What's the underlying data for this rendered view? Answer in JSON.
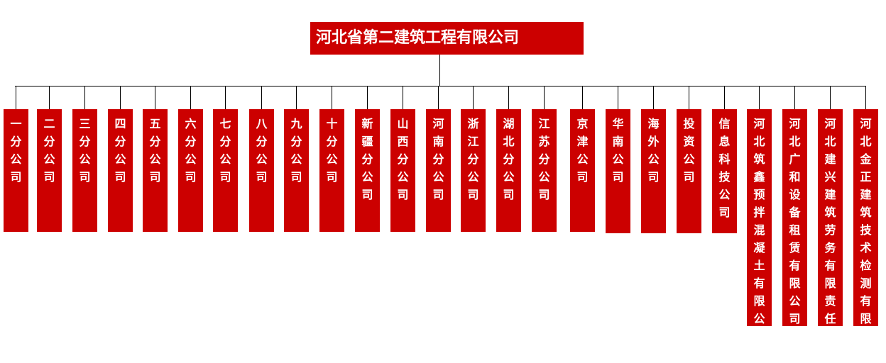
{
  "root": {
    "label": "河北省第二建筑工程有限公司"
  },
  "colors": {
    "box": "#cc0000",
    "text": "#ffffff",
    "connector": "#000000"
  },
  "children": [
    {
      "label": "一分公司"
    },
    {
      "label": "二分公司"
    },
    {
      "label": "三分公司"
    },
    {
      "label": "四分公司"
    },
    {
      "label": "五分公司"
    },
    {
      "label": "六分公司"
    },
    {
      "label": "七分公司"
    },
    {
      "label": "八分公司"
    },
    {
      "label": "九分公司"
    },
    {
      "label": "十分公司"
    },
    {
      "label": "新疆分公司"
    },
    {
      "label": "山西分公司"
    },
    {
      "label": "河南分公司"
    },
    {
      "label": "浙江分公司"
    },
    {
      "label": "湖北分公司"
    },
    {
      "label": "江苏分公司"
    },
    {
      "label": "京津公司"
    },
    {
      "label": "华南公司"
    },
    {
      "label": "海外公司"
    },
    {
      "label": "投资公司"
    },
    {
      "label": "信息科技公司"
    },
    {
      "label": "河北筑鑫预拌混凝土有限公司"
    },
    {
      "label": "河北广和设备租赁有限公司"
    },
    {
      "label": "河北建兴建筑劳务有限责任公司"
    },
    {
      "label": "河北金正建筑技术检测有限公司"
    }
  ]
}
